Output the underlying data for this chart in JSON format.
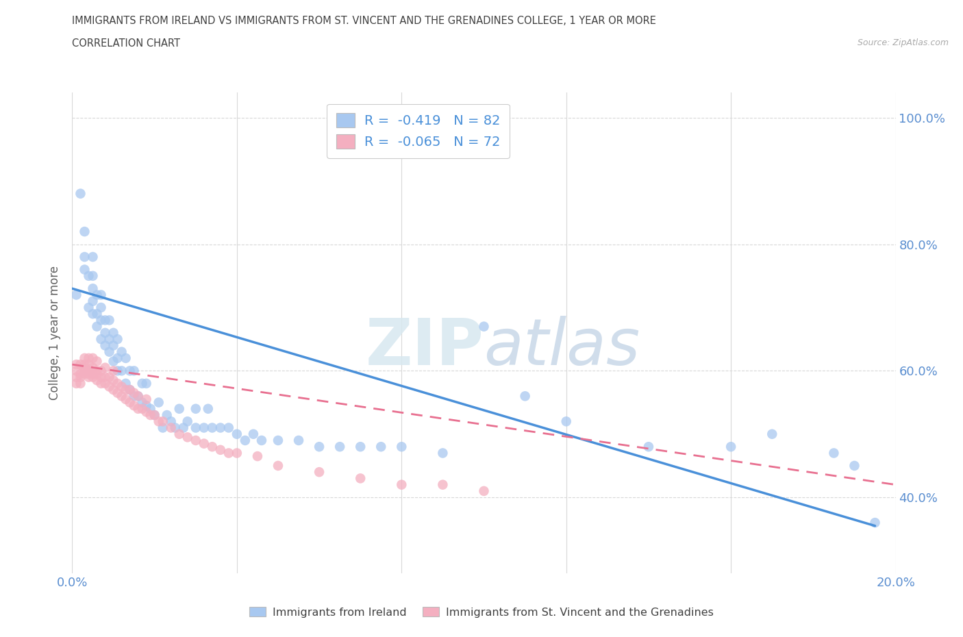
{
  "title_line1": "IMMIGRANTS FROM IRELAND VS IMMIGRANTS FROM ST. VINCENT AND THE GRENADINES COLLEGE, 1 YEAR OR MORE",
  "title_line2": "CORRELATION CHART",
  "source_text": "Source: ZipAtlas.com",
  "ylabel": "College, 1 year or more",
  "xlim": [
    0.0,
    0.2
  ],
  "ylim": [
    0.28,
    1.04
  ],
  "x_ticks": [
    0.0,
    0.04,
    0.08,
    0.12,
    0.16,
    0.2
  ],
  "y_ticks_right": [
    0.4,
    0.6,
    0.8,
    1.0
  ],
  "y_tick_labels_right": [
    "40.0%",
    "60.0%",
    "80.0%",
    "100.0%"
  ],
  "watermark": "ZIPatlas",
  "ireland_color": "#a8c8f0",
  "svg_color": "#f4afc0",
  "ireland_line_color": "#4a90d9",
  "svg_line_color": "#e87090",
  "ireland_R": -0.419,
  "ireland_N": 82,
  "svg_R": -0.065,
  "svg_N": 72,
  "legend_label_ireland": "Immigrants from Ireland",
  "legend_label_svg": "Immigrants from St. Vincent and the Grenadines",
  "ireland_scatter_x": [
    0.001,
    0.002,
    0.003,
    0.003,
    0.003,
    0.004,
    0.004,
    0.005,
    0.005,
    0.005,
    0.005,
    0.005,
    0.006,
    0.006,
    0.006,
    0.007,
    0.007,
    0.007,
    0.007,
    0.008,
    0.008,
    0.008,
    0.009,
    0.009,
    0.009,
    0.01,
    0.01,
    0.01,
    0.011,
    0.011,
    0.011,
    0.012,
    0.012,
    0.013,
    0.013,
    0.014,
    0.014,
    0.015,
    0.015,
    0.016,
    0.017,
    0.017,
    0.018,
    0.018,
    0.019,
    0.02,
    0.021,
    0.022,
    0.023,
    0.024,
    0.025,
    0.026,
    0.027,
    0.028,
    0.03,
    0.03,
    0.032,
    0.033,
    0.034,
    0.036,
    0.038,
    0.04,
    0.042,
    0.044,
    0.046,
    0.05,
    0.055,
    0.06,
    0.065,
    0.07,
    0.075,
    0.08,
    0.09,
    0.1,
    0.11,
    0.12,
    0.14,
    0.16,
    0.17,
    0.185,
    0.19,
    0.195
  ],
  "ireland_scatter_y": [
    0.72,
    0.88,
    0.76,
    0.78,
    0.82,
    0.7,
    0.75,
    0.69,
    0.71,
    0.73,
    0.75,
    0.78,
    0.67,
    0.69,
    0.72,
    0.65,
    0.68,
    0.7,
    0.72,
    0.64,
    0.66,
    0.68,
    0.63,
    0.65,
    0.68,
    0.615,
    0.64,
    0.66,
    0.6,
    0.62,
    0.65,
    0.6,
    0.63,
    0.58,
    0.62,
    0.57,
    0.6,
    0.56,
    0.6,
    0.56,
    0.55,
    0.58,
    0.545,
    0.58,
    0.54,
    0.53,
    0.55,
    0.51,
    0.53,
    0.52,
    0.51,
    0.54,
    0.51,
    0.52,
    0.51,
    0.54,
    0.51,
    0.54,
    0.51,
    0.51,
    0.51,
    0.5,
    0.49,
    0.5,
    0.49,
    0.49,
    0.49,
    0.48,
    0.48,
    0.48,
    0.48,
    0.48,
    0.47,
    0.67,
    0.56,
    0.52,
    0.48,
    0.48,
    0.5,
    0.47,
    0.45,
    0.36
  ],
  "svg_scatter_x": [
    0.001,
    0.001,
    0.001,
    0.001,
    0.002,
    0.002,
    0.002,
    0.002,
    0.003,
    0.003,
    0.003,
    0.003,
    0.003,
    0.004,
    0.004,
    0.004,
    0.004,
    0.004,
    0.005,
    0.005,
    0.005,
    0.005,
    0.006,
    0.006,
    0.006,
    0.006,
    0.007,
    0.007,
    0.007,
    0.008,
    0.008,
    0.008,
    0.009,
    0.009,
    0.01,
    0.01,
    0.01,
    0.011,
    0.011,
    0.012,
    0.012,
    0.013,
    0.013,
    0.014,
    0.014,
    0.015,
    0.015,
    0.016,
    0.016,
    0.017,
    0.018,
    0.018,
    0.019,
    0.02,
    0.021,
    0.022,
    0.024,
    0.026,
    0.028,
    0.03,
    0.032,
    0.034,
    0.036,
    0.038,
    0.04,
    0.045,
    0.05,
    0.06,
    0.07,
    0.08,
    0.09,
    0.1
  ],
  "svg_scatter_y": [
    0.59,
    0.61,
    0.58,
    0.6,
    0.58,
    0.59,
    0.595,
    0.61,
    0.595,
    0.6,
    0.605,
    0.61,
    0.62,
    0.59,
    0.595,
    0.6,
    0.61,
    0.62,
    0.59,
    0.595,
    0.605,
    0.62,
    0.585,
    0.595,
    0.6,
    0.615,
    0.58,
    0.59,
    0.6,
    0.58,
    0.59,
    0.605,
    0.575,
    0.59,
    0.57,
    0.585,
    0.6,
    0.565,
    0.58,
    0.56,
    0.575,
    0.555,
    0.57,
    0.55,
    0.57,
    0.545,
    0.565,
    0.54,
    0.56,
    0.54,
    0.535,
    0.555,
    0.53,
    0.53,
    0.52,
    0.52,
    0.51,
    0.5,
    0.495,
    0.49,
    0.485,
    0.48,
    0.475,
    0.47,
    0.47,
    0.465,
    0.45,
    0.44,
    0.43,
    0.42,
    0.42,
    0.41
  ],
  "ireland_trendline_x": [
    0.0,
    0.195
  ],
  "ireland_trendline_y": [
    0.73,
    0.355
  ],
  "svg_trendline_x": [
    0.0,
    0.2
  ],
  "svg_trendline_y": [
    0.61,
    0.42
  ],
  "background_color": "#ffffff",
  "grid_color": "#d8d8d8",
  "title_color": "#404040",
  "axis_label_color": "#606060",
  "tick_label_color": "#5a8ed0",
  "legend_text_color": "#4a90d9"
}
